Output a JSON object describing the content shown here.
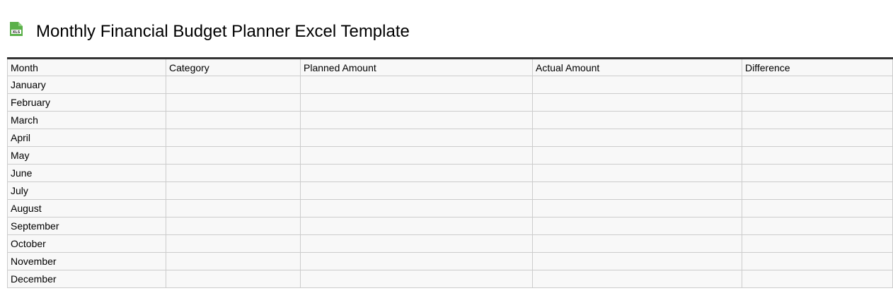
{
  "header": {
    "icon": "xls-file-icon",
    "icon_text": "XLS",
    "title": "Monthly Financial Budget Planner Excel Template"
  },
  "table": {
    "columns": [
      "Month",
      "Category",
      "Planned Amount",
      "Actual Amount",
      "Difference"
    ],
    "rows": [
      "January",
      "February",
      "March",
      "April",
      "May",
      "June",
      "July",
      "August",
      "September",
      "October",
      "November",
      "December"
    ]
  }
}
